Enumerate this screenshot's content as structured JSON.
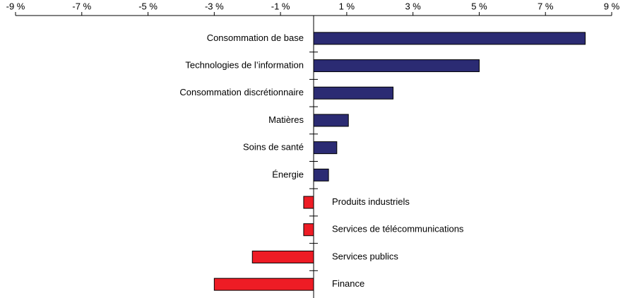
{
  "chart_data": {
    "type": "barh",
    "categories": [
      "Consommation de base",
      "Technologies de l’information",
      "Consommation discrétionnaire",
      "Matières",
      "Soins de santé",
      "Énergie",
      "Produits industriels",
      "Services de télécommunications",
      "Services publics",
      "Finance"
    ],
    "values": [
      8.2,
      5.0,
      2.4,
      1.05,
      0.7,
      0.45,
      -0.3,
      -0.3,
      -1.85,
      -3.0
    ],
    "positive_color": "#2b2b73",
    "negative_color": "#ee1c25",
    "xlim": [
      -9,
      9
    ],
    "xticks": [
      {
        "value": -9,
        "label": "-9 %"
      },
      {
        "value": -7,
        "label": "-7 %"
      },
      {
        "value": -5,
        "label": "-5 %"
      },
      {
        "value": -3,
        "label": "-3 %"
      },
      {
        "value": -1,
        "label": "-1 %"
      },
      {
        "value": 1,
        "label": "1 %"
      },
      {
        "value": 3,
        "label": "3 %"
      },
      {
        "value": 5,
        "label": "5 %"
      },
      {
        "value": 7,
        "label": "7 %"
      },
      {
        "value": 9,
        "label": "9 %"
      }
    ]
  }
}
